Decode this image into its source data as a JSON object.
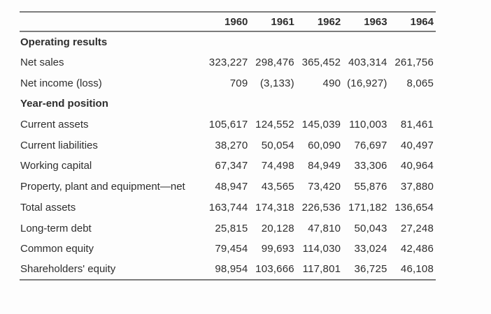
{
  "page": {
    "background": "#fdfdfd"
  },
  "colors": {
    "text": "#2e2e2e",
    "rule": "#7c7c7c"
  },
  "table": {
    "header": {
      "label": "",
      "years": [
        "1960",
        "1961",
        "1962",
        "1963",
        "1964"
      ]
    },
    "rows": [
      {
        "type": "section",
        "label": "Operating results",
        "values": [
          "",
          "",
          "",
          "",
          ""
        ]
      },
      {
        "type": "data",
        "label": "Net sales",
        "values": [
          "323,227",
          "298,476",
          "365,452",
          "403,314",
          "261,756"
        ]
      },
      {
        "type": "data",
        "label": "Net income (loss)",
        "values": [
          "709",
          "(3,133)",
          "490",
          "(16,927)",
          "8,065"
        ]
      },
      {
        "type": "section",
        "label": "Year-end position",
        "values": [
          "",
          "",
          "",
          "",
          ""
        ]
      },
      {
        "type": "data",
        "label": "Current assets",
        "values": [
          "105,617",
          "124,552",
          "145,039",
          "110,003",
          "81,461"
        ]
      },
      {
        "type": "data",
        "label": "Current liabilities",
        "values": [
          "38,270",
          "50,054",
          "60,090",
          "76,697",
          "40,497"
        ]
      },
      {
        "type": "data",
        "label": "Working capital",
        "values": [
          "67,347",
          "74,498",
          "84,949",
          "33,306",
          "40,964"
        ]
      },
      {
        "type": "data",
        "label": "Property, plant and equipment—net",
        "values": [
          "48,947",
          "43,565",
          "73,420",
          "55,876",
          "37,880"
        ]
      },
      {
        "type": "data",
        "label": "Total assets",
        "values": [
          "163,744",
          "174,318",
          "226,536",
          "171,182",
          "136,654"
        ]
      },
      {
        "type": "data",
        "label": "Long-term debt",
        "values": [
          "25,815",
          "20,128",
          "47,810",
          "50,043",
          "27,248"
        ]
      },
      {
        "type": "data",
        "label": "Common equity",
        "values": [
          "79,454",
          "99,693",
          "114,030",
          "33,024",
          "42,486"
        ]
      },
      {
        "type": "data",
        "label": "Shareholders' equity",
        "values": [
          "98,954",
          "103,666",
          "117,801",
          "36,725",
          "46,108"
        ]
      }
    ]
  }
}
